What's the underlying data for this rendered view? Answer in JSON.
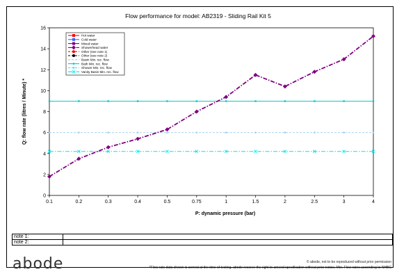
{
  "chart_data": {
    "type": "line",
    "title": "Flow performance for model: AB2319 - Sliding Rail Kit 5",
    "xlabel": "P: dynamic pressure (bar)",
    "ylabel": "Q: flow rate (litres / Minute) *",
    "categories": [
      "0.1",
      "0.2",
      "0.3",
      "0.4",
      "0.5",
      "0.75",
      "1",
      "1.5",
      "2",
      "2.5",
      "3",
      "4"
    ],
    "ylim": [
      0,
      16
    ],
    "yticks": [
      "0",
      "2",
      "4",
      "6",
      "8",
      "10",
      "12",
      "14",
      "16"
    ],
    "grid": false,
    "legend_position": "top-left",
    "legend": [
      {
        "label": "Hot water",
        "color": "#ff0000",
        "dash": "solid",
        "marker": "square"
      },
      {
        "label": "Cold water",
        "color": "#3366ff",
        "dash": "solid",
        "marker": "square"
      },
      {
        "label": "Mixed water",
        "color": "#800080",
        "dash": "solid",
        "marker": "square"
      },
      {
        "label": "Showerhead water",
        "color": "#800080",
        "dash": "dashdot",
        "marker": "diamond"
      },
      {
        "label": "Other (see note 1)",
        "color": "#ff0000",
        "dash": "dashed",
        "marker": "circle"
      },
      {
        "label": "Other (see note 2)",
        "color": "#000000",
        "dash": "dashed",
        "marker": "circle"
      },
      {
        "label": "Basin Min. rec. flow",
        "color": "#99ccff",
        "dash": "dashed",
        "marker": "none"
      },
      {
        "label": "Bath Min. rec. flow",
        "color": "#00cccc",
        "dash": "solid",
        "marker": "small"
      },
      {
        "label": "Shower Min. rec. flow",
        "color": "#66ccff",
        "dash": "dashed",
        "marker": "small"
      },
      {
        "label": "Vanity Basin Min. rec. flow",
        "color": "#00e5e5",
        "dash": "dashdot",
        "marker": "x"
      }
    ],
    "series": [
      {
        "name": "Showerhead water",
        "color": "#800080",
        "dash": "dashdot",
        "marker": "diamond",
        "values": [
          1.8,
          3.5,
          4.6,
          5.4,
          6.3,
          8.0,
          9.4,
          11.5,
          10.4,
          11.8,
          13.0,
          15.2
        ]
      },
      {
        "name": "Bath Min. rec. flow",
        "color": "#00cccc",
        "dash": "solid",
        "marker": "small",
        "values": [
          9,
          9,
          9,
          9,
          9,
          9,
          9,
          9,
          9,
          9,
          9,
          9
        ]
      },
      {
        "name": "Shower Min. rec. flow",
        "color": "#a6d2f2",
        "dash": "dashed",
        "marker": "small",
        "values": [
          6,
          6,
          6,
          6,
          6,
          6,
          6,
          6,
          6,
          6,
          6,
          6
        ]
      },
      {
        "name": "Vanity Basin Min. rec. flow",
        "color": "#00e5e5",
        "dash": "dashdot",
        "marker": "x",
        "values": [
          4.2,
          4.2,
          4.2,
          4.2,
          4.2,
          4.2,
          4.2,
          4.2,
          4.2,
          4.2,
          4.2,
          4.2
        ]
      }
    ]
  },
  "notes": [
    {
      "label": "note 1:",
      "value": ""
    },
    {
      "label": "note 2:",
      "value": ""
    }
  ],
  "logo_text": "abode",
  "copyright": "© abode, not to be reproduced without prior permission",
  "disclaimer": "*Flow rate data shown is correct at the time of testing, abode reserve the right to amend specification without prior notice, Min. Flow rates acconding to NHBC"
}
